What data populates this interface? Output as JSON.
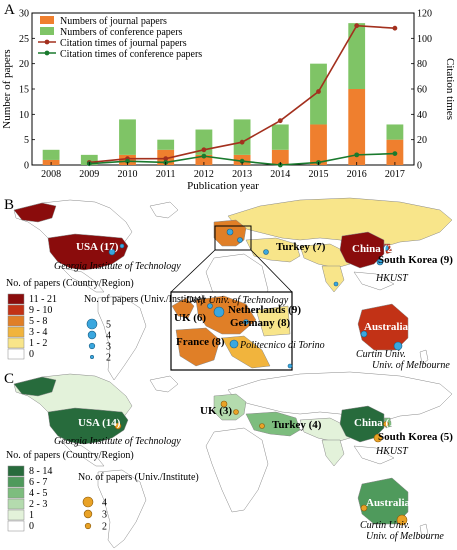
{
  "colors": {
    "journal": "#ef7f2e",
    "conference": "#7fc466",
    "cite_journal": "#a3301e",
    "cite_conference": "#1a7a2e",
    "ocean": "#ffffff",
    "nodata": "#ffffff",
    "univ_dot_b": "#3aa7df",
    "univ_dot_c": "#e9a226"
  },
  "chart_data": [
    {
      "type": "bar",
      "panel": "A",
      "categories": [
        "2008",
        "2009",
        "2010",
        "2011",
        "2012",
        "2013",
        "2014",
        "2015",
        "2016",
        "2017"
      ],
      "series": [
        {
          "name": "Numbers of journal papers",
          "kind": "bar",
          "axis": "left",
          "values": [
            1,
            0,
            2,
            3,
            2,
            2,
            3,
            8,
            15,
            5
          ]
        },
        {
          "name": "Numbers of conference papers",
          "kind": "bar",
          "axis": "left",
          "values": [
            2,
            2,
            7,
            2,
            5,
            7,
            5,
            12,
            13,
            3
          ]
        },
        {
          "name": "Citation times of journal papers",
          "kind": "line",
          "axis": "right",
          "values": [
            null,
            2,
            5,
            5,
            12,
            18,
            35,
            58,
            110,
            108
          ]
        },
        {
          "name": "Citation times of conference papers",
          "kind": "line",
          "axis": "right",
          "values": [
            null,
            1,
            3,
            2,
            7,
            3,
            0,
            2,
            8,
            9
          ]
        }
      ],
      "xlabel": "Publication year",
      "ylabel": "Number of papers",
      "y2label": "Citation times",
      "ylim": [
        0,
        30
      ],
      "y2lim": [
        0,
        120
      ],
      "yticks": [
        0,
        5,
        10,
        15,
        20,
        25,
        30
      ],
      "y2ticks": [
        0,
        20,
        40,
        60,
        80,
        100,
        120
      ],
      "legend_position": "top-left",
      "stacked": true
    },
    {
      "type": "map",
      "panel": "B",
      "legend_title": "No. of papers (Country/Region)",
      "legend_bins": [
        {
          "label": "11 - 21",
          "color": "#8a0c0c"
        },
        {
          "label": "9 - 10",
          "color": "#c23216"
        },
        {
          "label": "5 - 8",
          "color": "#e07f27"
        },
        {
          "label": "3 - 4",
          "color": "#f1b43d"
        },
        {
          "label": "1 - 2",
          "color": "#f8e58a"
        },
        {
          "label": "0",
          "color": "#ffffff"
        }
      ],
      "univ_legend_title": "No. of papers (Univ./Institute)",
      "univ_bins": [
        "5",
        "4",
        "3",
        "2"
      ],
      "country_labels": [
        "USA (17)",
        "China (21)",
        "Turkey (7)",
        "South Korea (9)",
        "Australia (10)",
        "UK (6)",
        "Netherlands (9)",
        "Germany (8)",
        "France (8)"
      ],
      "institutes": [
        "Georgia Institute of Technology",
        "HKUST",
        "Delft Univ. of Technology",
        "Politecnico di Torino",
        "Curtin Univ.",
        "Univ. of Melbourne"
      ]
    },
    {
      "type": "map",
      "panel": "C",
      "legend_title": "No. of papers (Country/Region)",
      "legend_bins": [
        {
          "label": "8 - 14",
          "color": "#276b3c"
        },
        {
          "label": "6 - 7",
          "color": "#4f9a5c"
        },
        {
          "label": "4 - 5",
          "color": "#7dbd7e"
        },
        {
          "label": "2 - 3",
          "color": "#b4dbae"
        },
        {
          "label": "1",
          "color": "#e3f2da"
        },
        {
          "label": "0",
          "color": "#ffffff"
        }
      ],
      "univ_legend_title": "No. of papers (Univ./Institute)",
      "univ_bins": [
        "4",
        "3",
        "2"
      ],
      "country_labels": [
        "USA (14)",
        "China (11)",
        "UK (3)",
        "Turkey (4)",
        "South Korea (5)",
        "Australia (7)"
      ],
      "institutes": [
        "Georgia Institute of Technology",
        "HKUST",
        "Curtin Univ.",
        "Univ. of Melbourne"
      ]
    }
  ],
  "panel_letters": [
    "A",
    "B",
    "C"
  ]
}
